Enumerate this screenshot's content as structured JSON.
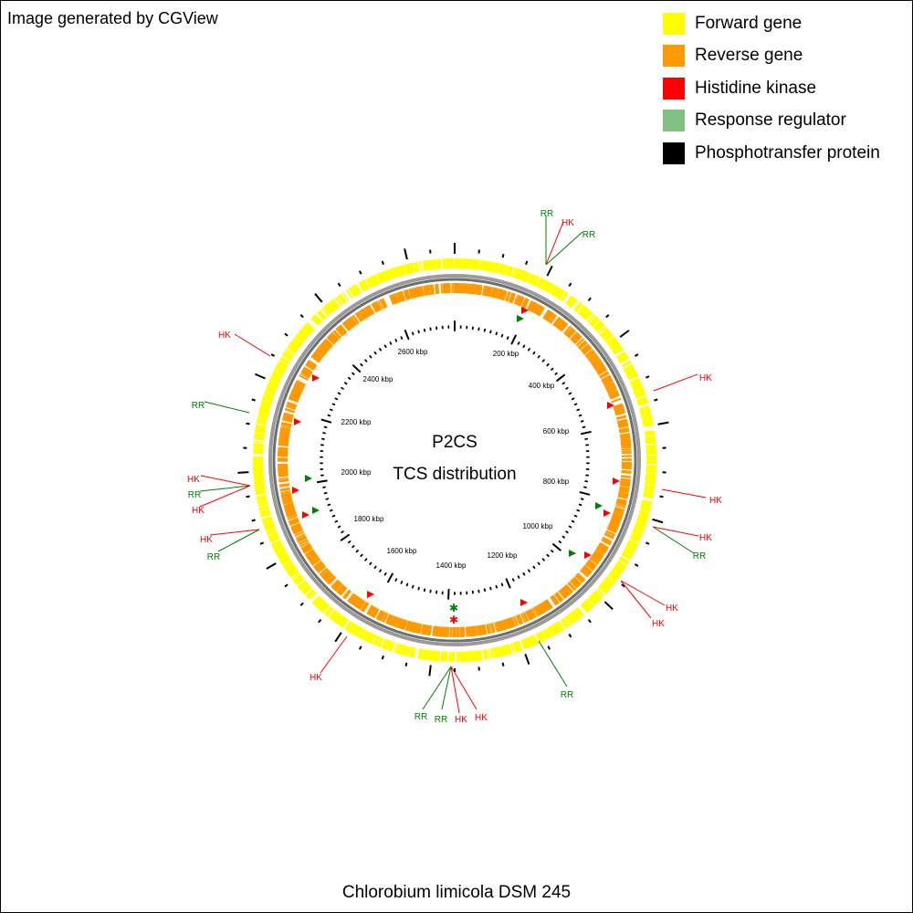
{
  "credit": "Image generated by CGView",
  "legend": [
    {
      "label": "Forward gene",
      "color": "#ffff00"
    },
    {
      "label": "Reverse gene",
      "color": "#ff9900"
    },
    {
      "label": "Histidine kinase",
      "color": "#ff0000"
    },
    {
      "label": "Response regulator",
      "color": "#80c080"
    },
    {
      "label": "Phosphotransfer protein",
      "color": "#000000"
    }
  ],
  "center": {
    "title": "P2CS",
    "subtitle": "TCS distribution"
  },
  "organism": "Chlorobium limicola DSM 245",
  "colors": {
    "forward": "#ffff00",
    "reverse": "#ff9900",
    "backbone": "#808080",
    "hk": "#ff0000",
    "rr": "#008000",
    "tick": "#000000"
  },
  "genome": {
    "unit": "kbp",
    "scale_labels": [
      "200 kbp",
      "400 kbp",
      "600 kbp",
      "800 kbp",
      "1000 kbp",
      "1200 kbp",
      "1400 kbp",
      "1600 kbp",
      "1800 kbp",
      "2000 kbp",
      "2200 kbp",
      "2400 kbp",
      "2600 kbp"
    ]
  },
  "callouts": [
    {
      "label": "RR",
      "type": "rr"
    },
    {
      "label": "HK",
      "type": "hk"
    },
    {
      "label": "RR",
      "type": "rr"
    },
    {
      "label": "HK",
      "type": "hk"
    },
    {
      "label": "HK",
      "type": "hk"
    },
    {
      "label": "RR",
      "type": "rr"
    },
    {
      "label": "HK",
      "type": "hk"
    },
    {
      "label": "HK",
      "type": "hk"
    },
    {
      "label": "RR",
      "type": "rr"
    },
    {
      "label": "HK",
      "type": "hk"
    },
    {
      "label": "HK",
      "type": "hk"
    },
    {
      "label": "RR",
      "type": "rr"
    },
    {
      "label": "HK",
      "type": "hk"
    },
    {
      "label": "RR",
      "type": "rr"
    },
    {
      "label": "HK",
      "type": "hk"
    },
    {
      "label": "HK",
      "type": "hk"
    },
    {
      "label": "RR",
      "type": "rr"
    },
    {
      "label": "HK",
      "type": "hk"
    },
    {
      "label": "RR",
      "type": "rr"
    },
    {
      "label": "RR",
      "type": "rr"
    },
    {
      "label": "HK",
      "type": "hk"
    },
    {
      "label": "HK",
      "type": "hk"
    },
    {
      "label": "HK",
      "type": "hk"
    }
  ]
}
